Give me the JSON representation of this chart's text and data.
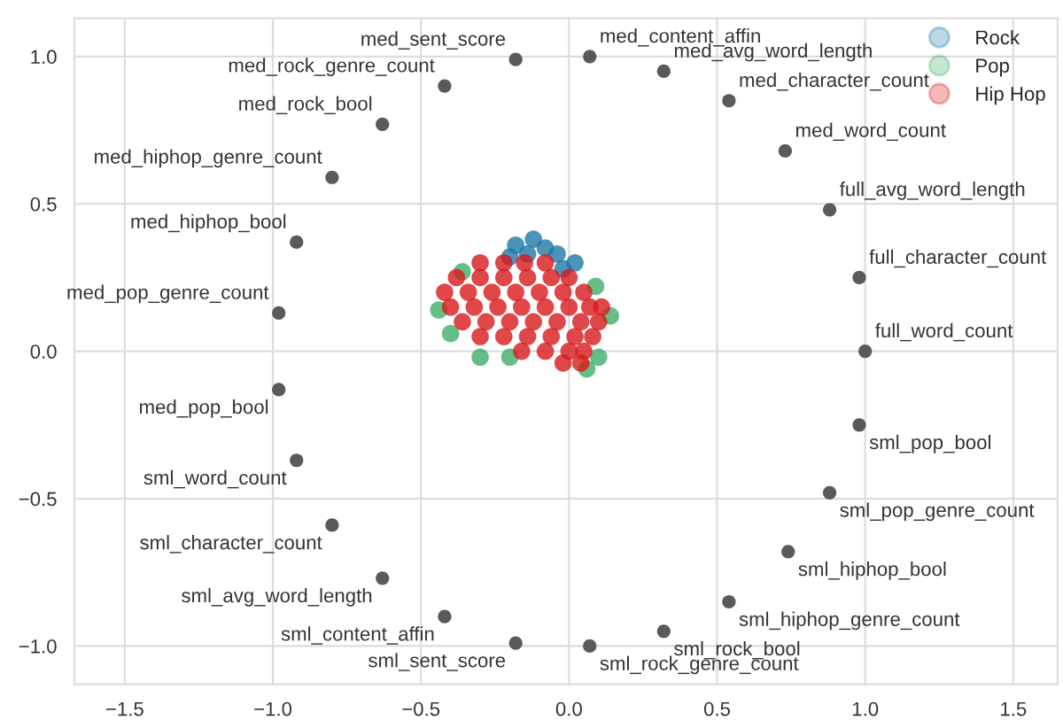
{
  "chart_data": {
    "type": "scatter",
    "xlim": [
      -1.67,
      1.65
    ],
    "ylim": [
      -1.13,
      1.13
    ],
    "xticks": [
      {
        "value": -1.5,
        "label": "−1.5"
      },
      {
        "value": -1.0,
        "label": "−1.0"
      },
      {
        "value": -0.5,
        "label": "−0.5"
      },
      {
        "value": 0.0,
        "label": "0.0"
      },
      {
        "value": 0.5,
        "label": "0.5"
      },
      {
        "value": 1.0,
        "label": "1.0"
      },
      {
        "value": 1.5,
        "label": "1.5"
      }
    ],
    "yticks": [
      {
        "value": -1.0,
        "label": "−1.0"
      },
      {
        "value": -0.5,
        "label": "−0.5"
      },
      {
        "value": 0.0,
        "label": "0.0"
      },
      {
        "value": 0.5,
        "label": "0.5"
      },
      {
        "value": 1.0,
        "label": "1.0"
      }
    ],
    "grid": true,
    "legend": "top right",
    "marker": "circle",
    "series": [
      {
        "name": "Rock",
        "color": "#1e78a8",
        "x": [
          -0.18,
          -0.12,
          -0.08,
          -0.04,
          -0.02,
          -0.14,
          -0.2,
          0.02
        ],
        "values": [
          0.36,
          0.38,
          0.35,
          0.33,
          0.28,
          0.33,
          0.32,
          0.3
        ]
      },
      {
        "name": "Pop",
        "color": "#3fae6a",
        "x": [
          -0.44,
          -0.4,
          -0.3,
          0.1,
          0.06,
          0.14,
          -0.2,
          0.09,
          -0.36
        ],
        "values": [
          0.14,
          0.06,
          -0.02,
          -0.02,
          -0.06,
          0.12,
          -0.02,
          0.22,
          0.27
        ]
      },
      {
        "name": "Hip Hop",
        "color": "#d7191c",
        "x": [
          -0.3,
          -0.22,
          -0.15,
          -0.08,
          -0.38,
          -0.3,
          -0.22,
          -0.14,
          -0.06,
          0.0,
          -0.42,
          -0.34,
          -0.26,
          -0.18,
          -0.1,
          -0.02,
          0.05,
          -0.4,
          -0.32,
          -0.24,
          -0.16,
          -0.08,
          0.0,
          0.07,
          0.11,
          -0.36,
          -0.28,
          -0.2,
          -0.12,
          -0.04,
          0.04,
          0.1,
          -0.3,
          -0.22,
          -0.14,
          -0.06,
          0.02,
          0.08,
          -0.16,
          -0.08,
          0.0,
          0.05,
          -0.02,
          0.04
        ],
        "values": [
          0.3,
          0.3,
          0.3,
          0.3,
          0.25,
          0.25,
          0.25,
          0.25,
          0.25,
          0.25,
          0.2,
          0.2,
          0.2,
          0.2,
          0.2,
          0.2,
          0.2,
          0.15,
          0.15,
          0.15,
          0.15,
          0.15,
          0.15,
          0.15,
          0.15,
          0.1,
          0.1,
          0.1,
          0.1,
          0.1,
          0.1,
          0.1,
          0.05,
          0.05,
          0.05,
          0.05,
          0.05,
          0.05,
          0.0,
          0.0,
          0.0,
          0.0,
          -0.04,
          -0.04
        ]
      },
      {
        "color": "#5a5a5a",
        "x": [
          -0.18,
          -0.42,
          -0.63,
          -0.8,
          -0.92,
          -0.98,
          -0.98,
          -0.92,
          -0.8,
          -0.63,
          -0.42,
          -0.18,
          0.07,
          0.32,
          0.54,
          0.74,
          0.88,
          0.98,
          1.0,
          0.98,
          0.88,
          0.73,
          0.54,
          0.32,
          0.07
        ],
        "values": [
          0.99,
          0.9,
          0.77,
          0.59,
          0.37,
          0.13,
          -0.13,
          -0.37,
          -0.59,
          -0.77,
          -0.9,
          -0.99,
          -1.0,
          -0.95,
          -0.85,
          -0.68,
          -0.48,
          -0.25,
          0.0,
          0.25,
          0.48,
          0.68,
          0.85,
          0.95,
          1.0
        ]
      }
    ],
    "annotations": [
      {
        "text": "med_sent_score",
        "x": -0.18,
        "y": 0.99
      },
      {
        "text": "med_rock_genre_count",
        "x": -0.42,
        "y": 0.9
      },
      {
        "text": "med_rock_bool",
        "x": -0.63,
        "y": 0.77
      },
      {
        "text": "med_hiphop_genre_count",
        "x": -0.8,
        "y": 0.59
      },
      {
        "text": "med_hiphop_bool",
        "x": -0.92,
        "y": 0.37
      },
      {
        "text": "med_pop_genre_count",
        "x": -0.98,
        "y": 0.13
      },
      {
        "text": "med_pop_bool",
        "x": -0.98,
        "y": -0.13
      },
      {
        "text": "sml_word_count",
        "x": -0.92,
        "y": -0.37
      },
      {
        "text": "sml_character_count",
        "x": -0.8,
        "y": -0.59
      },
      {
        "text": "sml_avg_word_length",
        "x": -0.63,
        "y": -0.77
      },
      {
        "text": "sml_content_affin",
        "x": -0.42,
        "y": -0.9
      },
      {
        "text": "sml_sent_score",
        "x": -0.18,
        "y": -0.99
      },
      {
        "text": "sml_rock_genre_count",
        "x": 0.07,
        "y": -1.0
      },
      {
        "text": "sml_rock_bool",
        "x": 0.32,
        "y": -0.95
      },
      {
        "text": "sml_hiphop_genre_count",
        "x": 0.54,
        "y": -0.85
      },
      {
        "text": "sml_hiphop_bool",
        "x": 0.74,
        "y": -0.68
      },
      {
        "text": "sml_pop_genre_count",
        "x": 0.88,
        "y": -0.48
      },
      {
        "text": "sml_pop_bool",
        "x": 0.98,
        "y": -0.25
      },
      {
        "text": "full_word_count",
        "x": 1.0,
        "y": 0.0
      },
      {
        "text": "full_character_count",
        "x": 0.98,
        "y": 0.25
      },
      {
        "text": "full_avg_word_length",
        "x": 0.88,
        "y": 0.48
      },
      {
        "text": "med_word_count",
        "x": 0.73,
        "y": 0.68
      },
      {
        "text": "med_character_count",
        "x": 0.54,
        "y": 0.85
      },
      {
        "text": "med_avg_word_length",
        "x": 0.32,
        "y": 0.95
      },
      {
        "text": "med_content_affin",
        "x": 0.07,
        "y": 1.0
      }
    ]
  }
}
